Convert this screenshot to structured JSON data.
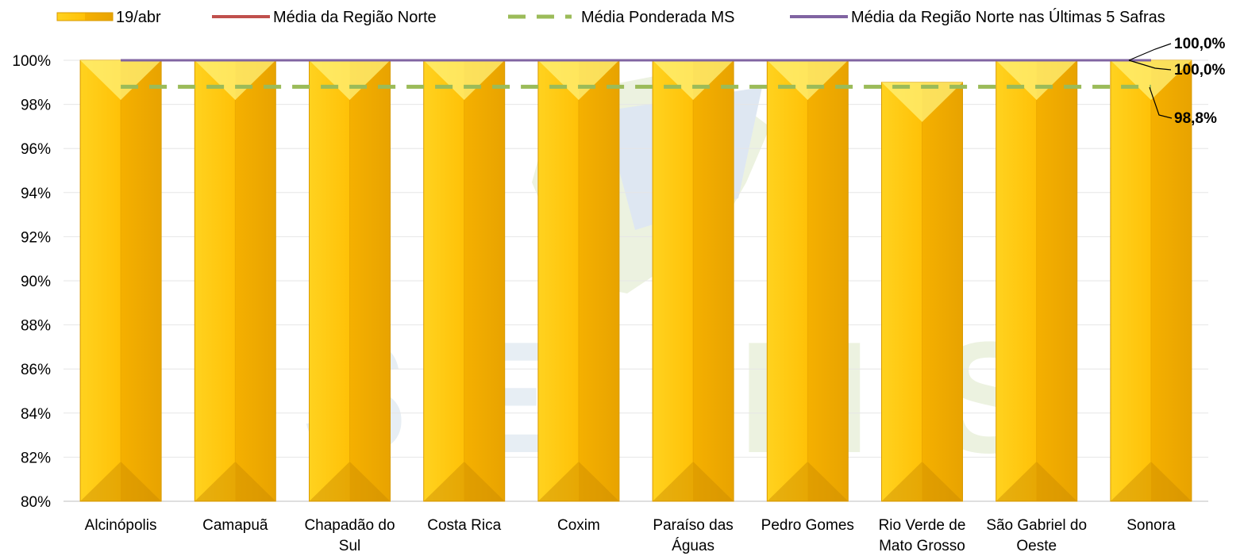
{
  "colors": {
    "bar": "#F7B500",
    "bar_light": "#FFD21F",
    "bar_dark": "#D99A00",
    "regiao_norte": "#C0504D",
    "ponderada_ms": "#9BBB59",
    "ultimas_5_safras": "#8064A2",
    "grid": "#E6E6E6",
    "text": "#000000"
  },
  "legend": {
    "bar_label": "19/abr",
    "line1_label": "Média da Região Norte",
    "line2_label": "Média Ponderada MS",
    "line3_label": "Média da Região Norte nas Últimas 5 Safras"
  },
  "callouts": {
    "a": "100,0%",
    "b": "100,0%",
    "c": "98,8%"
  },
  "chart_data": {
    "type": "bar",
    "categories": [
      [
        "Alcinópolis"
      ],
      [
        "Camapuã"
      ],
      [
        "Chapadão do",
        "Sul"
      ],
      [
        "Costa Rica"
      ],
      [
        "Coxim"
      ],
      [
        "Paraíso das",
        "Águas"
      ],
      [
        "Pedro Gomes"
      ],
      [
        "Rio Verde de",
        "Mato Grosso"
      ],
      [
        "São Gabriel do",
        "Oeste"
      ],
      [
        "Sonora"
      ]
    ],
    "series": [
      {
        "name": "19/abr",
        "kind": "bar",
        "values": [
          100,
          100,
          100,
          100,
          100,
          100,
          100,
          99,
          100,
          100
        ]
      },
      {
        "name": "Média da Região Norte",
        "kind": "line",
        "value": 100.0
      },
      {
        "name": "Média Ponderada MS",
        "kind": "dashed-line",
        "value": 98.8
      },
      {
        "name": "Média da Região Norte nas Últimas 5 Safras",
        "kind": "line",
        "value": 100.0
      }
    ],
    "ylim": [
      80,
      100
    ],
    "yticks": [
      "80%",
      "82%",
      "84%",
      "86%",
      "88%",
      "90%",
      "92%",
      "94%",
      "96%",
      "98%",
      "100%"
    ],
    "grid": true,
    "legend_position": "top"
  }
}
